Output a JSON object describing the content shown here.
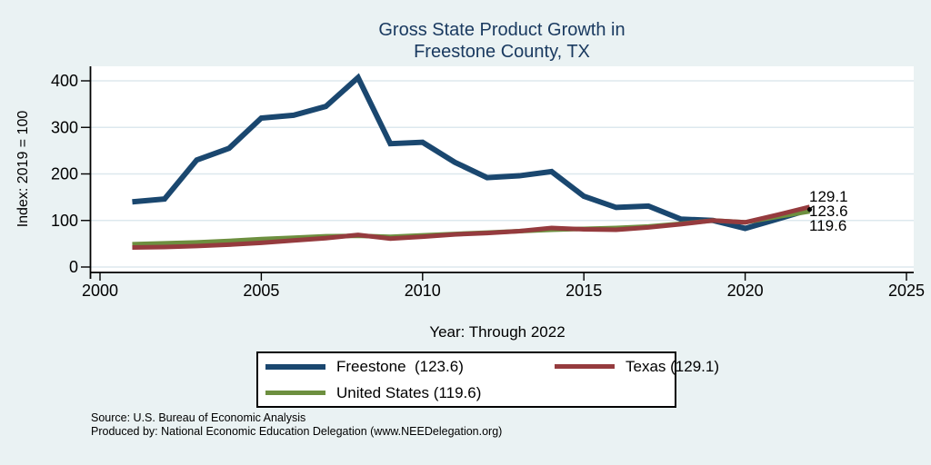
{
  "title": {
    "line1": "Gross State Product Growth in",
    "line2": "Freestone County, TX"
  },
  "axes": {
    "y_label": "Index: 2019 = 100",
    "x_label": "Year: Through 2022",
    "y_ticks": [
      0,
      100,
      200,
      300,
      400
    ],
    "x_ticks": [
      2000,
      2005,
      2010,
      2015,
      2020,
      2025
    ]
  },
  "chart_data": {
    "type": "line",
    "title": "Gross State Product Growth in Freestone County, TX",
    "xlabel": "Year: Through 2022",
    "ylabel": "Index: 2019 = 100",
    "xlim": [
      2000,
      2025
    ],
    "ylim": [
      0,
      400
    ],
    "grid": true,
    "legend_position": "bottom",
    "x": [
      2001,
      2002,
      2003,
      2004,
      2005,
      2006,
      2007,
      2008,
      2009,
      2010,
      2011,
      2012,
      2013,
      2014,
      2015,
      2016,
      2017,
      2018,
      2019,
      2020,
      2021,
      2022
    ],
    "series": [
      {
        "name": "Freestone",
        "color": "#1a476f",
        "width": 6,
        "values": [
          140,
          146,
          230,
          255,
          320,
          326,
          345,
          407,
          265,
          268,
          225,
          192,
          196,
          205,
          152,
          128,
          131,
          103,
          100,
          83,
          103,
          123.6
        ]
      },
      {
        "name": "United States",
        "color": "#6d8f3f",
        "width": 5,
        "values": [
          49,
          51,
          53,
          56,
          60,
          63,
          66,
          67,
          65,
          68,
          71,
          74,
          77,
          80,
          82,
          84,
          87,
          93,
          100,
          96,
          108,
          119.6
        ]
      },
      {
        "name": "Texas",
        "color": "#953b3e",
        "width": 5,
        "values": [
          42,
          43,
          45,
          48,
          52,
          57,
          62,
          69,
          61,
          65,
          70,
          73,
          77,
          84,
          81,
          80,
          85,
          92,
          100,
          96,
          112,
          129.1
        ]
      }
    ],
    "end_labels": [
      "129.1",
      "123.6",
      "119.6"
    ]
  },
  "legend": {
    "items": [
      {
        "label": "Freestone  (123.6)",
        "color": "#1a476f",
        "height": 6
      },
      {
        "label": "Texas (129.1)",
        "color": "#953b3e",
        "height": 5
      },
      {
        "label": "United States (119.6)",
        "color": "#6d8f3f",
        "height": 5
      }
    ]
  },
  "footer": {
    "line1": "Source: U.S. Bureau of Economic Analysis",
    "line2": "Produced by: National Economic Education Delegation (www.NEEDelegation.org)"
  },
  "colors": {
    "background": "#eaf2f3",
    "plot_background": "#ffffff",
    "gridline": "#dde8ee",
    "title": "#1a3a60",
    "axis": "#000000"
  }
}
